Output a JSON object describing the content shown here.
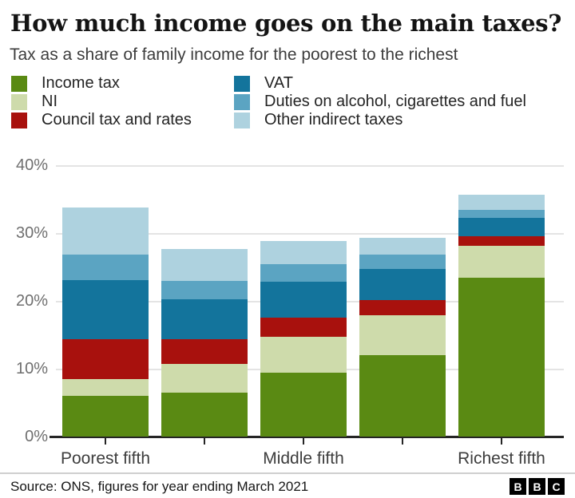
{
  "header": {
    "title": "How much income goes on the main taxes?",
    "subtitle": "Tax as a share of family income for the poorest to the richest"
  },
  "chart_data": {
    "type": "bar",
    "stacked": true,
    "title": "How much income goes on the main taxes?",
    "subtitle": "Tax as a share of family income for the poorest to the richest",
    "categories": [
      "Poorest fifth",
      "",
      "Middle fifth",
      "",
      "Richest fifth"
    ],
    "series": [
      {
        "name": "Income tax",
        "color": "#5a8a13",
        "values": [
          6.0,
          6.5,
          9.4,
          12.0,
          23.4
        ]
      },
      {
        "name": "NI",
        "color": "#cedbab",
        "values": [
          2.5,
          4.2,
          5.3,
          5.9,
          4.7
        ]
      },
      {
        "name": "Council tax and rates",
        "color": "#a8110d",
        "values": [
          5.9,
          3.7,
          2.8,
          2.2,
          1.4
        ]
      },
      {
        "name": "VAT",
        "color": "#13749c",
        "values": [
          8.7,
          5.8,
          5.3,
          4.6,
          2.7
        ]
      },
      {
        "name": "Duties on alcohol, cigarettes and fuel",
        "color": "#5ba4c2",
        "values": [
          3.7,
          2.8,
          2.6,
          2.1,
          1.2
        ]
      },
      {
        "name": "Other indirect taxes",
        "color": "#aed2df",
        "values": [
          7.0,
          4.6,
          3.4,
          2.5,
          2.3
        ]
      }
    ],
    "totals": [
      33.8,
      27.6,
      28.8,
      29.3,
      35.7
    ],
    "ylim": [
      0,
      40
    ],
    "yticks": [
      {
        "label": "0%",
        "value": 0
      },
      {
        "label": "10%",
        "value": 10
      },
      {
        "label": "20%",
        "value": 20
      },
      {
        "label": "30%",
        "value": 30
      },
      {
        "label": "40%",
        "value": 40
      }
    ],
    "legend_columns": [
      [
        0,
        1,
        2
      ],
      [
        3,
        4,
        5
      ]
    ],
    "legend_position": "top",
    "grid": true
  },
  "footer": {
    "source": "Source: ONS, figures for year ending March 2021",
    "logo_letters": [
      "B",
      "B",
      "C"
    ]
  }
}
